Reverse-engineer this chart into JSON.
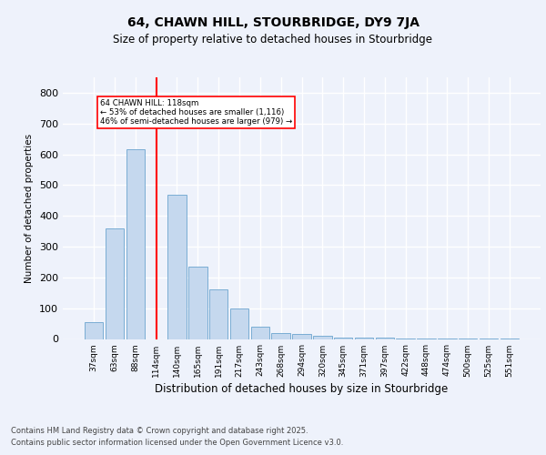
{
  "title1": "64, CHAWN HILL, STOURBRIDGE, DY9 7JA",
  "title2": "Size of property relative to detached houses in Stourbridge",
  "xlabel": "Distribution of detached houses by size in Stourbridge",
  "ylabel": "Number of detached properties",
  "categories": [
    "37sqm",
    "63sqm",
    "88sqm",
    "114sqm",
    "140sqm",
    "165sqm",
    "191sqm",
    "217sqm",
    "243sqm",
    "268sqm",
    "294sqm",
    "320sqm",
    "345sqm",
    "371sqm",
    "397sqm",
    "422sqm",
    "448sqm",
    "474sqm",
    "500sqm",
    "525sqm",
    "551sqm"
  ],
  "values": [
    55,
    360,
    615,
    0,
    470,
    235,
    160,
    100,
    40,
    18,
    15,
    10,
    5,
    3,
    3,
    2,
    2,
    1,
    1,
    1,
    2
  ],
  "bar_color": "#c5d8ee",
  "bar_edge_color": "#7aadd4",
  "red_line_index": 3,
  "annotation_title": "64 CHAWN HILL: 118sqm",
  "annotation_line1": "← 53% of detached houses are smaller (1,116)",
  "annotation_line2": "46% of semi-detached houses are larger (979) →",
  "ylim": [
    0,
    850
  ],
  "yticks": [
    0,
    100,
    200,
    300,
    400,
    500,
    600,
    700,
    800
  ],
  "background_color": "#eef2fb",
  "grid_color": "#ffffff",
  "footer1": "Contains HM Land Registry data © Crown copyright and database right 2025.",
  "footer2": "Contains public sector information licensed under the Open Government Licence v3.0."
}
